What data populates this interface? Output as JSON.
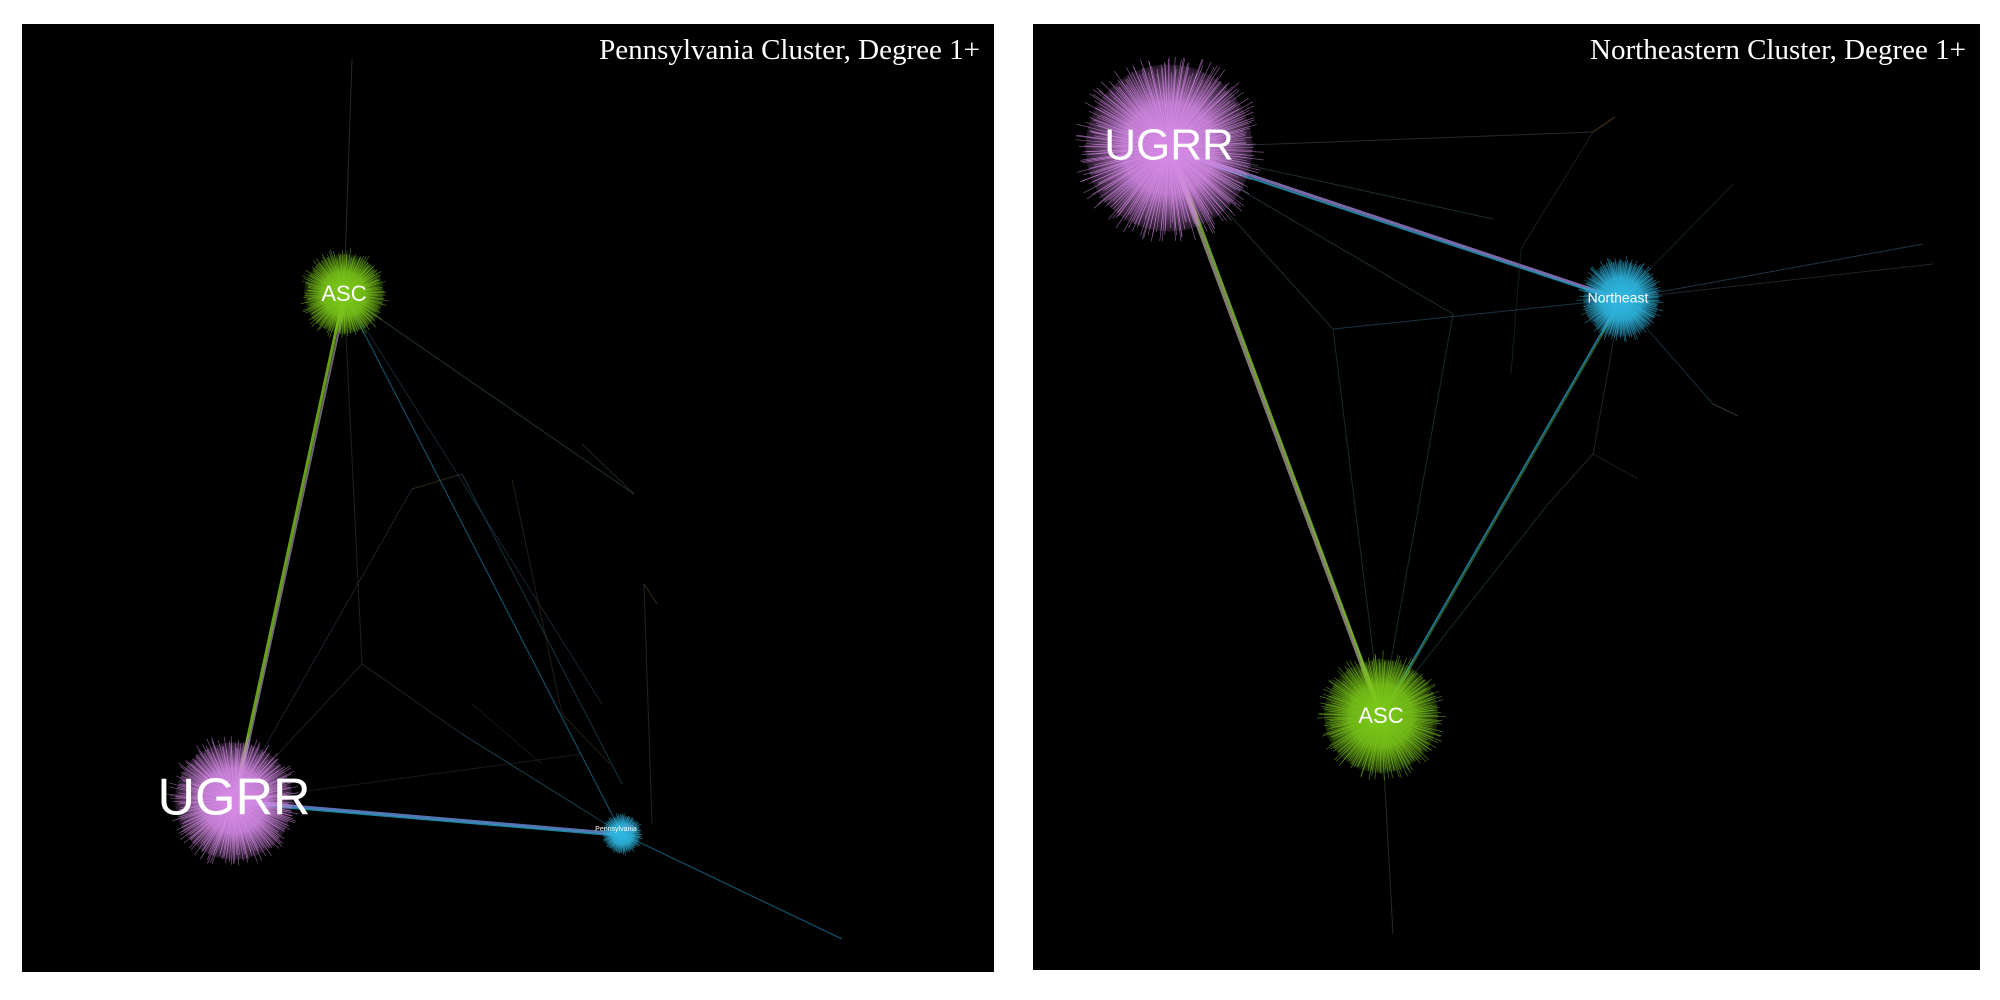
{
  "panels": [
    {
      "id": "pennsylvania",
      "title": "Pennsylvania Cluster, Degree 1+",
      "hubs": [
        {
          "label": "ASC",
          "color": "#7bc71a"
        },
        {
          "label": "UGRR",
          "color": "#d58ae6"
        },
        {
          "label": "Pennsylvania",
          "color": "#2fb6e0"
        }
      ]
    },
    {
      "id": "northeast",
      "title": "Northeastern Cluster, Degree 1+",
      "hubs": [
        {
          "label": "UGRR",
          "color": "#d58ae6"
        },
        {
          "label": "Northeast",
          "color": "#2fb6e0"
        },
        {
          "label": "ASC",
          "color": "#7bc71a"
        }
      ]
    }
  ]
}
